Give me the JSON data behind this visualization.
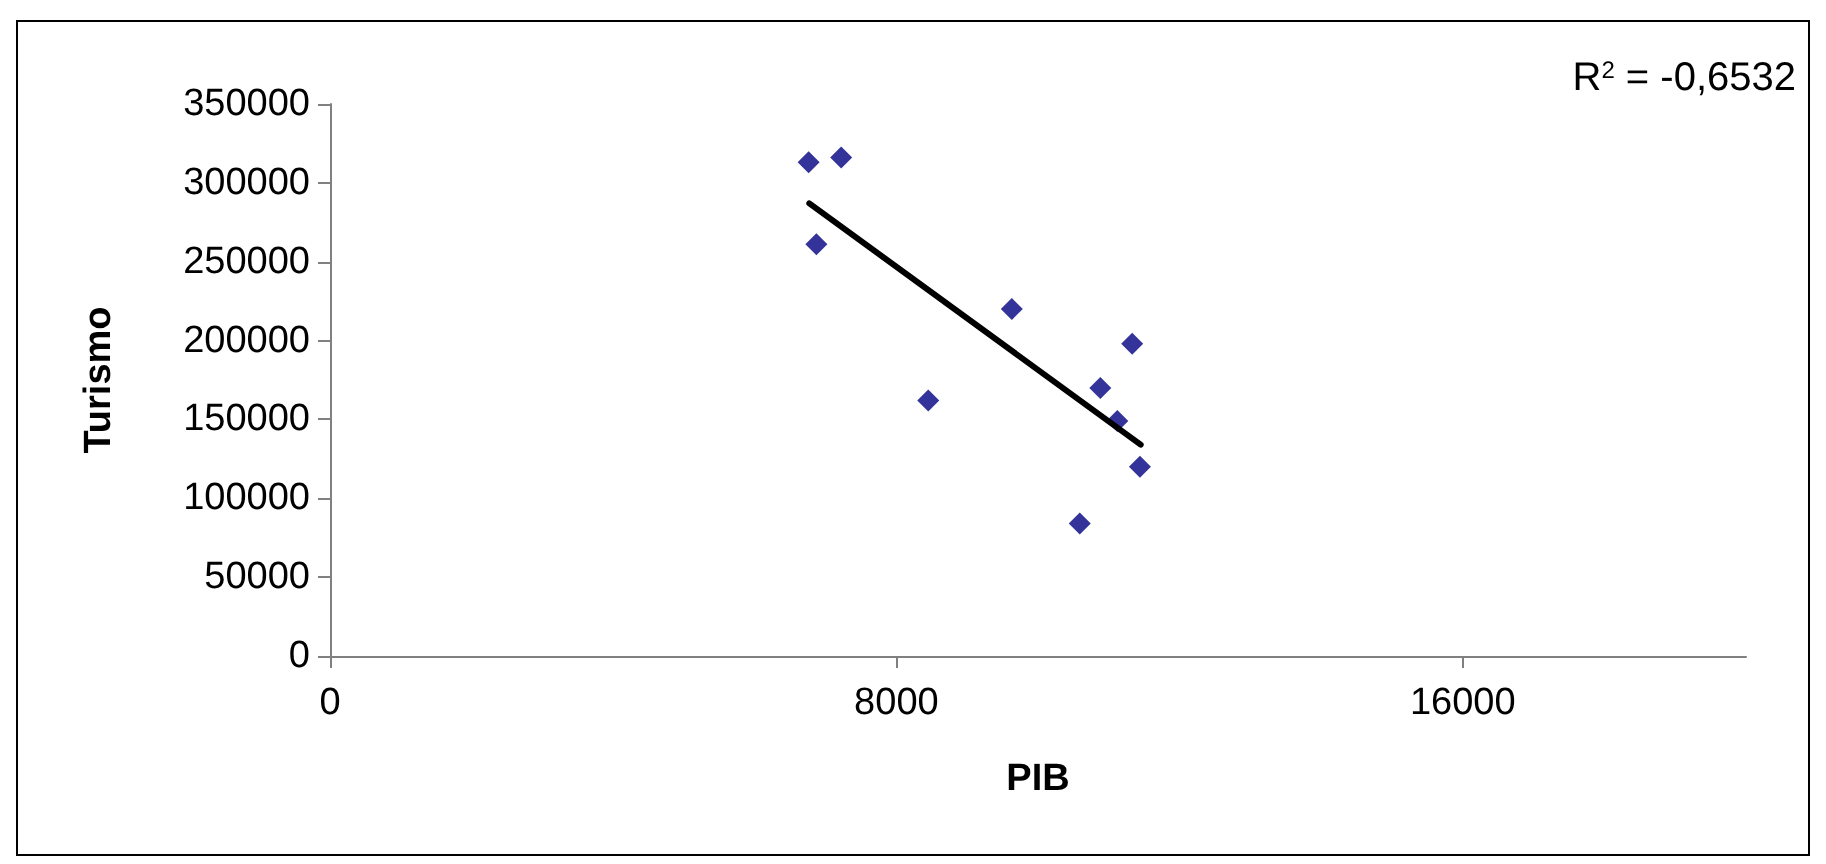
{
  "chart_data": {
    "type": "scatter",
    "xlabel": "PIB",
    "ylabel": "Turismo",
    "annotations": [
      "R$^{2}$ = -0,6532"
    ],
    "x": [
      6760,
      7220,
      6870,
      8450,
      9630,
      11330,
      10880,
      11120,
      11440,
      10590
    ],
    "series": [
      {
        "color": "#000080",
        "values": [
          313000,
          316000,
          261000,
          162000,
          220000,
          198000,
          170000,
          149000,
          120000,
          84000
        ]
      },
      {
        "type": "line",
        "color": "#000000",
        "x": [
          6770,
          11450
        ],
        "values": [
          287000,
          134000
        ],
        "marker": "none"
      }
    ],
    "xlim": [
      0,
      20000
    ],
    "xticks": [
      0,
      8000,
      16000
    ],
    "ylim": [
      0,
      350000
    ],
    "yticks": [
      0,
      50000,
      100000,
      150000,
      200000,
      250000,
      300000,
      350000
    ],
    "marker": "diamond",
    "grid": false
  }
}
